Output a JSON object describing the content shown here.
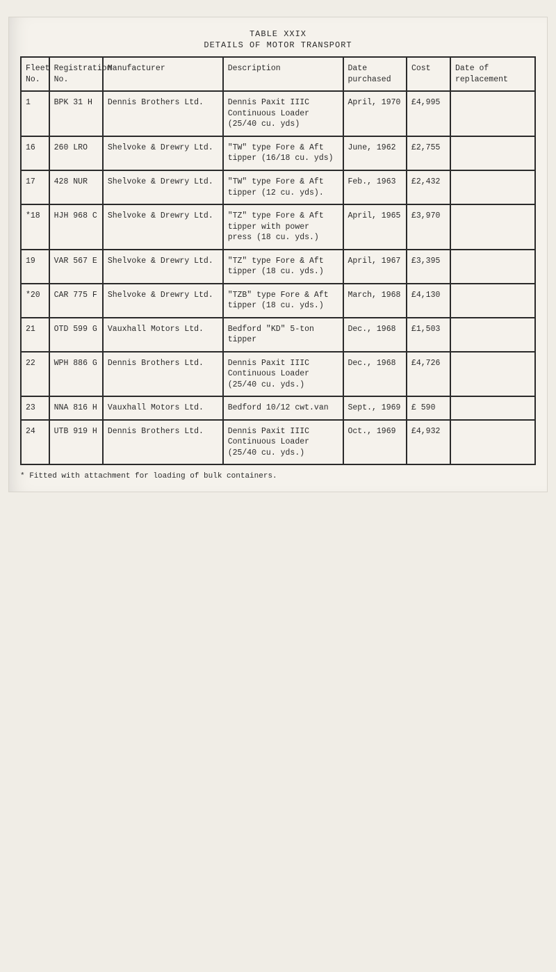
{
  "title_line1": "TABLE XXIX",
  "title_line2": "DETAILS OF MOTOR TRANSPORT",
  "columns": {
    "fleet": "Fleet\nNo.",
    "reg": "Registration\nNo.",
    "manu": "Manufacturer",
    "desc": "Description",
    "date": "Date\npurchased",
    "cost": "Cost",
    "repl": "Date of replacement"
  },
  "rows": [
    {
      "fleet": "1",
      "reg": "BPK 31 H",
      "manu": "Dennis Brothers Ltd.",
      "desc": "Dennis Paxit IIIC\nContinuous Loader\n(25/40 cu. yds)",
      "date": "April, 1970",
      "cost": "£4,995",
      "repl": ""
    },
    {
      "fleet": "16",
      "reg": "260 LRO",
      "manu": "Shelvoke & Drewry Ltd.",
      "desc": "\"TW\" type Fore & Aft\ntipper (16/18 cu. yds)",
      "date": "June, 1962",
      "cost": "£2,755",
      "repl": ""
    },
    {
      "fleet": "17",
      "reg": "428 NUR",
      "manu": "Shelvoke & Drewry Ltd.",
      "desc": "\"TW\" type Fore & Aft\ntipper (12 cu. yds).",
      "date": "Feb., 1963",
      "cost": "£2,432",
      "repl": ""
    },
    {
      "fleet": "*18",
      "reg": "HJH 968 C",
      "manu": "Shelvoke & Drewry Ltd.",
      "desc": "\"TZ\" type Fore & Aft\ntipper with power\npress (18 cu. yds.)",
      "date": "April, 1965",
      "cost": "£3,970",
      "repl": ""
    },
    {
      "fleet": "19",
      "reg": "VAR 567 E",
      "manu": "Shelvoke & Drewry Ltd.",
      "desc": "\"TZ\" type Fore & Aft\ntipper (18 cu. yds.)",
      "date": "April, 1967",
      "cost": "£3,395",
      "repl": ""
    },
    {
      "fleet": "*20",
      "reg": "CAR 775 F",
      "manu": "Shelvoke & Drewry Ltd.",
      "desc": "\"TZB\" type Fore & Aft\ntipper (18 cu. yds.)",
      "date": "March, 1968",
      "cost": "£4,130",
      "repl": ""
    },
    {
      "fleet": "21",
      "reg": "OTD 599 G",
      "manu": "Vauxhall Motors Ltd.",
      "desc": "Bedford \"KD\" 5-ton\ntipper",
      "date": "Dec., 1968",
      "cost": "£1,503",
      "repl": ""
    },
    {
      "fleet": "22",
      "reg": "WPH 886 G",
      "manu": "Dennis Brothers Ltd.",
      "desc": "Dennis Paxit IIIC\nContinuous Loader\n(25/40 cu. yds.)",
      "date": "Dec., 1968",
      "cost": "£4,726",
      "repl": ""
    },
    {
      "fleet": "23",
      "reg": "NNA 816 H",
      "manu": "Vauxhall Motors Ltd.",
      "desc": "Bedford 10/12 cwt.van",
      "date": "Sept., 1969",
      "cost": "£  590",
      "repl": ""
    },
    {
      "fleet": "24",
      "reg": "UTB 919 H",
      "manu": "Dennis Brothers Ltd.",
      "desc": "Dennis Paxit IIIC\nContinuous Loader\n(25/40 cu. yds.)",
      "date": "Oct., 1969",
      "cost": "£4,932",
      "repl": ""
    }
  ],
  "footnote": "*  Fitted with attachment for loading of bulk containers."
}
